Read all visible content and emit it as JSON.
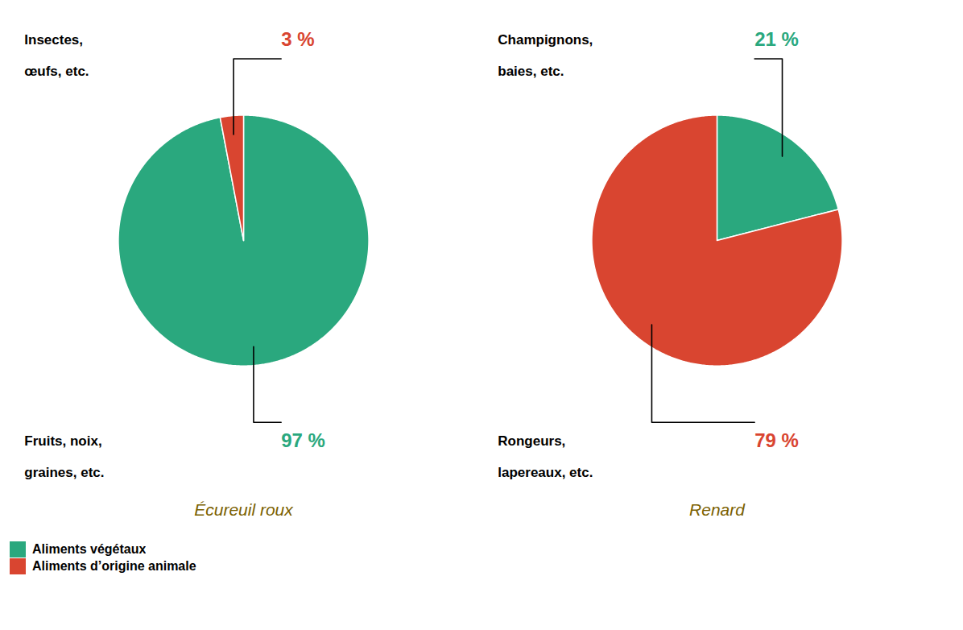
{
  "chart_data": [
    {
      "type": "pie",
      "title": "Écureuil roux",
      "categories": [
        "Aliments végétaux",
        "Aliments d’origine animale"
      ],
      "values": [
        97,
        3
      ],
      "value_labels": [
        "97 %",
        "3 %"
      ],
      "colors": [
        "#2aA87E",
        "#D94530"
      ],
      "data_labels": true,
      "annotations": [
        [
          "Fruits, noix,",
          "graines, etc."
        ],
        [
          "Insectes,",
          "œufs, etc."
        ]
      ],
      "legend": "lower left"
    },
    {
      "type": "pie",
      "title": "Renard",
      "categories": [
        "Aliments végétaux",
        "Aliments d’origine animale"
      ],
      "values": [
        21,
        79
      ],
      "value_labels": [
        "21 %",
        "79 %"
      ],
      "colors": [
        "#2aA87E",
        "#D94530"
      ],
      "data_labels": true,
      "annotations": [
        [
          "Champignons,",
          "baies, etc."
        ],
        [
          "Rongeurs,",
          "lapereaux, etc."
        ]
      ]
    }
  ]
}
